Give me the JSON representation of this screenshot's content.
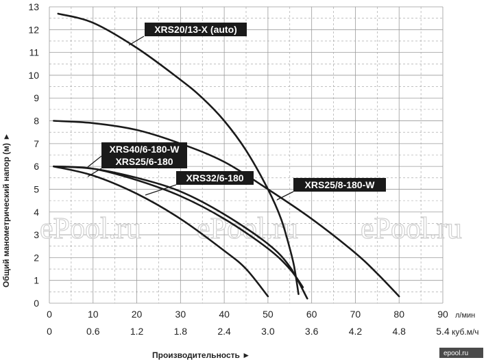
{
  "chart_data": {
    "type": "line",
    "ylabel": "Общий манометрический напор (м) ►",
    "xlabel": "Производительность ►",
    "ylim": [
      0,
      13
    ],
    "xlim": [
      0,
      90
    ],
    "y_ticks": [
      0,
      1,
      2,
      3,
      4,
      5,
      6,
      7,
      8,
      9,
      10,
      11,
      12,
      13
    ],
    "x_ticks_lmin": [
      0,
      10,
      20,
      30,
      40,
      50,
      60,
      70,
      80,
      90
    ],
    "x_ticks_m3h": [
      "0",
      "0.6",
      "1.2",
      "1.8",
      "2.4",
      "3.0",
      "3.6",
      "4.2",
      "4.8",
      "5.4"
    ],
    "x_unit_primary": "л/мин",
    "x_unit_secondary": "куб.м/ч",
    "grid": true,
    "series": [
      {
        "name": "XRS20/13-X (auto)",
        "x": [
          2,
          10,
          20,
          30,
          35,
          40,
          45,
          50,
          53,
          55,
          56,
          57
        ],
        "y": [
          12.7,
          12.3,
          11.2,
          9.8,
          9.0,
          8.0,
          6.7,
          5.0,
          3.7,
          2.4,
          1.6,
          0.4
        ]
      },
      {
        "name": "XRS25/8-180-W",
        "x": [
          1,
          10,
          20,
          30,
          40,
          50,
          60,
          70,
          75,
          80
        ],
        "y": [
          8.0,
          7.9,
          7.6,
          7.0,
          6.2,
          5.0,
          3.7,
          2.2,
          1.3,
          0.3
        ]
      },
      {
        "name": "XRS32/6-180",
        "x": [
          1,
          10,
          20,
          30,
          40,
          50,
          55,
          58
        ],
        "y": [
          6.0,
          5.9,
          5.4,
          4.7,
          3.7,
          2.4,
          1.5,
          0.7
        ]
      },
      {
        "name": "XRS40/6-180-W",
        "x": [
          1,
          10,
          20,
          30,
          40,
          50,
          55,
          59
        ],
        "y": [
          6.0,
          5.9,
          5.5,
          4.9,
          3.9,
          2.6,
          1.6,
          0.2
        ]
      },
      {
        "name": "XRS25/6-180",
        "x": [
          1,
          10,
          20,
          30,
          40,
          45,
          50
        ],
        "y": [
          6.0,
          5.6,
          4.8,
          3.7,
          2.3,
          1.5,
          0.3
        ]
      }
    ],
    "labels": [
      {
        "text": "XRS20/13-X (auto)",
        "series": 0
      },
      {
        "text": "XRS25/8-180-W",
        "series": 1
      },
      {
        "text": "XRS32/6-180",
        "series": 2
      },
      {
        "text": "XRS40/6-180-W",
        "series": 3
      },
      {
        "text": "XRS25/6-180",
        "series": 4
      }
    ],
    "curve_color": "#1a1a1a",
    "label_bg_color": "#1a1a1a",
    "label_text_color": "#ffffff",
    "grid_color": "#9a9a9a"
  },
  "watermark": "ePool.ru",
  "brand": "epool.ru"
}
